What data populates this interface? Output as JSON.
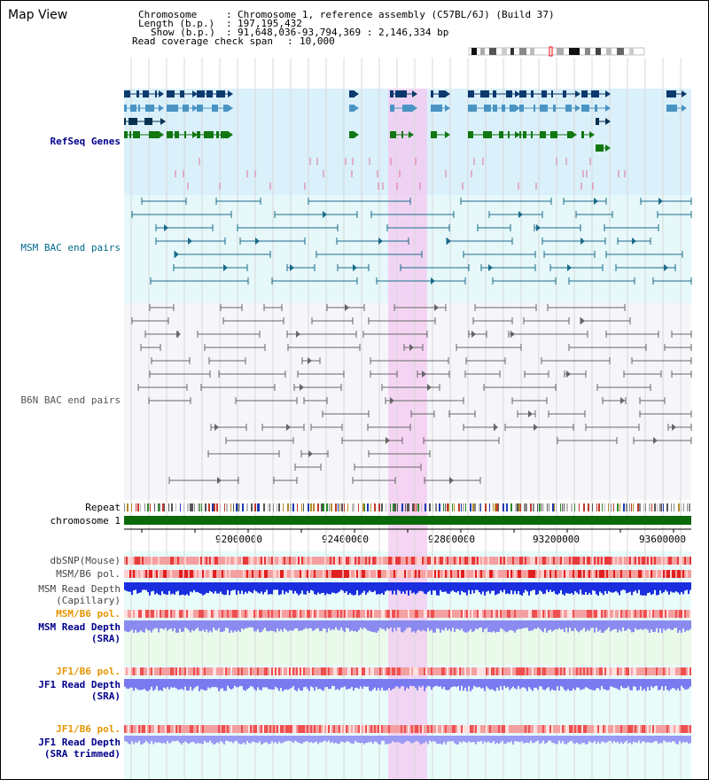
{
  "title": "Map View",
  "info": {
    "chromosome_key": "Chromosome",
    "chromosome_val": "Chromosome 1, reference assembly (C57BL/6J) (Build 37)",
    "length_key": "Length (b.p.)",
    "length_val": "197,195,432",
    "show_key": "Show (b.p.)",
    "show_val": "91,648,036-93,794,369 : 2,146,334 bp",
    "coverage_key": "Read coverage check span",
    "coverage_val": "10,000"
  },
  "tracks": {
    "refseq": "RefSeq Genes",
    "msm_bac": "MSM BAC end pairs",
    "b6n_bac": "B6N BAC end pairs",
    "repeat": "Repeat",
    "chromosome": "chromosome 1",
    "dbsnp": "dbSNP(Mouse)",
    "msm_pol_1": "MSM/B6 pol.",
    "msm_depth_cap": "MSM Read Depth\n(Capillary)",
    "msm_pol_2": "MSM/B6 pol.",
    "msm_depth_sra": "MSM Read Depth\n(SRA)",
    "jf1_pol_1": "JF1/B6 pol.",
    "jf1_depth_sra": "JF1 Read Depth\n(SRA)",
    "jf1_pol_2": "JF1/B6 pol.",
    "jf1_depth_trim": "JF1 Read Depth\n(SRA trimmed)"
  },
  "axis": {
    "ticks": [
      "92000000",
      "92400000",
      "92800000",
      "93200000",
      "93600000"
    ]
  },
  "colors": {
    "refseq_bg": "#daf0fa",
    "msm_bg": "#e6f8fa",
    "b6n_bg": "#f6f6fa",
    "lower_bg": "#e8fcfa",
    "sra_bg": "#eafaea",
    "highlight": "#f4c8f0",
    "dark_blue": "#0c3a6e",
    "mid_blue": "#4a94c4",
    "green": "#117711",
    "teal": "#1a6a8a",
    "grey": "#666666",
    "label_blue": "#00008b",
    "label_orange": "#e69500",
    "label_teal": "#006a8a"
  }
}
